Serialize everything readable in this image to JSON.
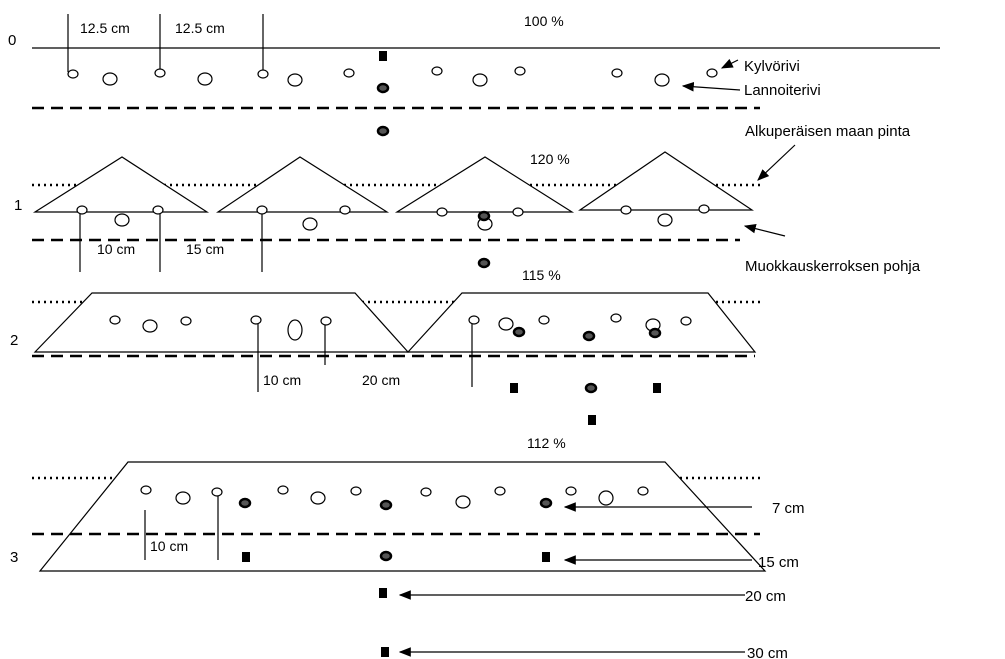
{
  "rows": [
    {
      "label": "0",
      "percent": "100 %",
      "measures": [
        "12.5 cm",
        "12.5 cm"
      ]
    },
    {
      "label": "1",
      "percent": "120 %",
      "measures": [
        "10 cm",
        "15 cm"
      ]
    },
    {
      "label": "2",
      "percent": "115 %",
      "measures": [
        "10 cm",
        "20 cm"
      ]
    },
    {
      "label": "3",
      "percent": "112 %",
      "measures": [
        "10 cm"
      ]
    }
  ],
  "legend": {
    "seed_row": "Kylvörivi",
    "fertilizer_row": "Lannoiterivi",
    "original_surface": "Alkuperäisen maan pinta",
    "tillage_bottom": "Muokkauskerroksen pohja"
  },
  "depths": [
    "7 cm",
    "15 cm",
    "20 cm",
    "30 cm"
  ]
}
